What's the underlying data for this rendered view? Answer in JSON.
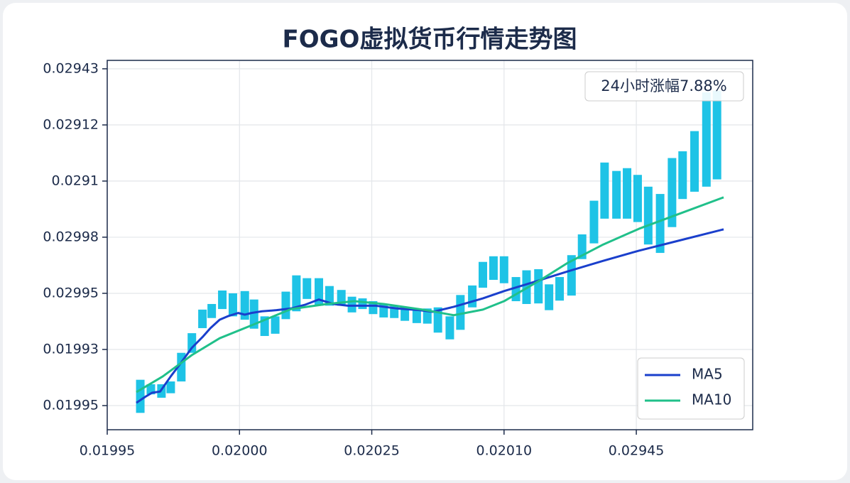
{
  "chart_data": {
    "type": "floating_bar",
    "title": "FOGO虚拟货币行情走势图",
    "annotation": "24小时涨幅7.88%",
    "xlim": [
      0,
      4.88
    ],
    "ylim": [
      -0.43,
      6.15
    ],
    "xticks": [
      {
        "value": 0,
        "label": "0.01995"
      },
      {
        "value": 1,
        "label": "0.02000"
      },
      {
        "value": 2,
        "label": "0.02025"
      },
      {
        "value": 3,
        "label": "0.02010"
      },
      {
        "value": 4,
        "label": "0.02945"
      }
    ],
    "yticks": [
      {
        "value": 0,
        "label": "0.01995"
      },
      {
        "value": 1,
        "label": "0.01993"
      },
      {
        "value": 2,
        "label": "0.02995"
      },
      {
        "value": 3,
        "label": "0.02998"
      },
      {
        "value": 4,
        "label": "0.0291"
      },
      {
        "value": 5,
        "label": "0.02912"
      },
      {
        "value": 6,
        "label": "0.02943"
      }
    ],
    "grid": true,
    "legend": "lower right",
    "bars": {
      "color": "#1ec3e6",
      "x": [
        0.25,
        0.33,
        0.41,
        0.48,
        0.56,
        0.64,
        0.72,
        0.79,
        0.87,
        0.95,
        1.04,
        1.11,
        1.19,
        1.27,
        1.35,
        1.43,
        1.51,
        1.6,
        1.68,
        1.77,
        1.85,
        1.93,
        2.01,
        2.09,
        2.17,
        2.25,
        2.34,
        2.42,
        2.5,
        2.59,
        2.67,
        2.76,
        2.84,
        2.92,
        3.0,
        3.09,
        3.17,
        3.26,
        3.34,
        3.42,
        3.51,
        3.59,
        3.68,
        3.76,
        3.85,
        3.93,
        4.01,
        4.09,
        4.18,
        4.27,
        4.35,
        4.44,
        4.53,
        4.61
      ],
      "low": [
        -0.13,
        0.2,
        0.14,
        0.22,
        0.43,
        0.94,
        1.38,
        1.56,
        1.72,
        1.59,
        1.53,
        1.37,
        1.24,
        1.28,
        1.54,
        1.68,
        1.9,
        1.78,
        1.78,
        1.78,
        1.66,
        1.72,
        1.63,
        1.57,
        1.56,
        1.51,
        1.47,
        1.46,
        1.3,
        1.18,
        1.35,
        1.75,
        2.1,
        2.24,
        2.18,
        1.86,
        1.81,
        1.82,
        1.7,
        1.87,
        1.96,
        2.61,
        2.89,
        3.33,
        3.33,
        3.33,
        3.27,
        2.87,
        2.72,
        3.18,
        3.68,
        3.81,
        3.9,
        4.03
      ],
      "high": [
        0.46,
        0.38,
        0.38,
        0.43,
        0.94,
        1.29,
        1.71,
        1.81,
        2.05,
        2.0,
        2.04,
        1.89,
        1.59,
        1.59,
        2.03,
        2.32,
        2.27,
        2.27,
        2.13,
        2.06,
        1.94,
        1.91,
        1.86,
        1.8,
        1.77,
        1.75,
        1.73,
        1.73,
        1.75,
        1.59,
        1.97,
        2.14,
        2.56,
        2.66,
        2.66,
        2.29,
        2.41,
        2.43,
        2.16,
        2.29,
        2.68,
        3.05,
        3.65,
        4.33,
        4.18,
        4.23,
        4.11,
        3.9,
        3.77,
        4.41,
        4.53,
        4.89,
        5.58,
        5.61
      ]
    },
    "series": [
      {
        "name": "MA5",
        "color": "#1a3fcc",
        "x": [
          0.22,
          0.29,
          0.34,
          0.4,
          0.48,
          0.56,
          0.64,
          0.72,
          0.78,
          0.85,
          0.91,
          0.99,
          1.04,
          1.09,
          1.17,
          1.28,
          1.39,
          1.5,
          1.6,
          1.71,
          1.82,
          1.93,
          2.03,
          2.19,
          2.36,
          2.46,
          2.62,
          2.84,
          3.0,
          3.21,
          3.48,
          3.75,
          4.02,
          4.29,
          4.66
        ],
        "values": [
          0.05,
          0.16,
          0.23,
          0.25,
          0.52,
          0.77,
          1.03,
          1.22,
          1.38,
          1.53,
          1.59,
          1.65,
          1.62,
          1.65,
          1.68,
          1.7,
          1.73,
          1.8,
          1.89,
          1.81,
          1.78,
          1.78,
          1.78,
          1.73,
          1.7,
          1.67,
          1.76,
          1.91,
          2.04,
          2.19,
          2.39,
          2.58,
          2.76,
          2.92,
          3.14
        ]
      },
      {
        "name": "MA10",
        "color": "#20c08a",
        "x": [
          0.22,
          0.42,
          0.64,
          0.85,
          1.07,
          1.39,
          1.66,
          1.87,
          2.09,
          2.41,
          2.62,
          2.84,
          3.0,
          3.27,
          3.48,
          3.75,
          4.02,
          4.34,
          4.66
        ],
        "values": [
          0.24,
          0.52,
          0.9,
          1.2,
          1.41,
          1.72,
          1.81,
          1.86,
          1.81,
          1.7,
          1.61,
          1.71,
          1.86,
          2.23,
          2.54,
          2.87,
          3.15,
          3.43,
          3.71
        ]
      }
    ]
  }
}
